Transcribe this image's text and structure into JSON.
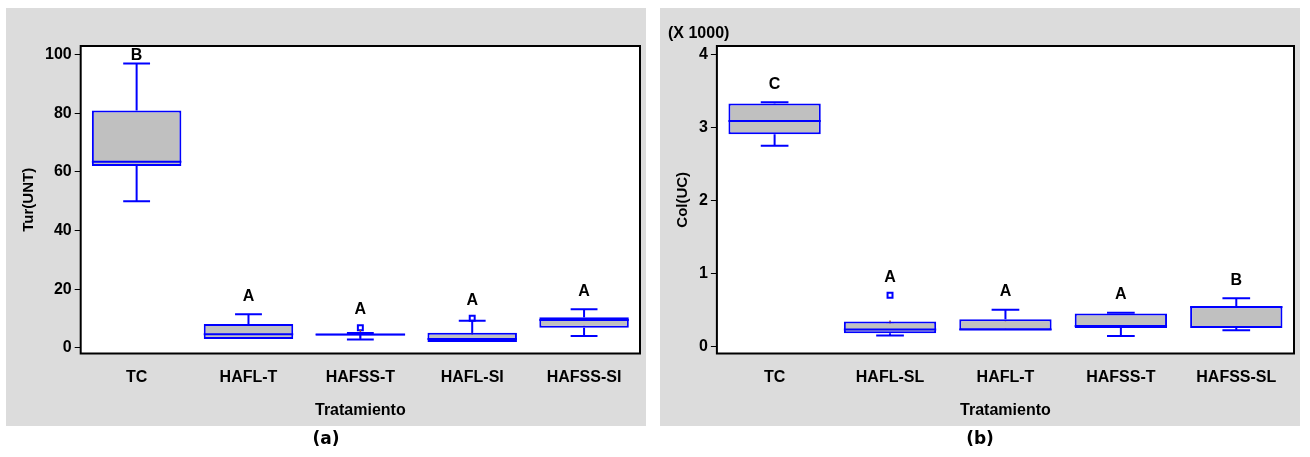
{
  "chart_data": [
    {
      "type": "box",
      "xlabel": "Tratamiento",
      "ylabel": "Tur(UNT)",
      "categories": [
        "TC",
        "HAFL-T",
        "HAFSS-T",
        "HAFL-SI",
        "HAFSS-SI"
      ],
      "ylim": [
        -2,
        103
      ],
      "yticks": [
        0,
        20,
        40,
        60,
        80,
        100
      ],
      "grid": false,
      "legend": false,
      "series": [
        {
          "color": "#0000ff",
          "boxes": [
            {
              "low": 50,
              "q1": 62,
              "median": 63.5,
              "q3": 81,
              "high": 97,
              "mean": 71
            },
            {
              "low": 3,
              "q1": 3,
              "median": 4.6,
              "q3": 8.1,
              "high": 11.4,
              "mean": 5.9
            },
            {
              "low": 2.8,
              "q1": 4.2,
              "median": 4.5,
              "q3": 4.8,
              "high": 5,
              "mean": 4.7,
              "outliers": [
                6.8
              ]
            },
            {
              "low": 2,
              "q1": 2,
              "median": 3,
              "q3": 5.1,
              "high": 9.2,
              "mean": 4,
              "outliers": [
                10.1
              ]
            },
            {
              "low": 4,
              "q1": 6.8,
              "median": 9.5,
              "q3": 10.4,
              "high": 13.1,
              "mean": 8.9
            }
          ]
        }
      ],
      "annotations": [
        "B",
        "A",
        "A",
        "A",
        "A",
        "(a)"
      ]
    },
    {
      "type": "box",
      "xlabel": "Tratamiento",
      "ylabel": "Col(UC)",
      "categories": [
        "TC",
        "HAFL-SL",
        "HAFL-T",
        "HAFSS-T",
        "HAFSS-SL"
      ],
      "ylim": [
        -0.1,
        4.12
      ],
      "yticks": [
        0,
        1,
        2,
        3,
        4
      ],
      "grid": false,
      "legend": false,
      "series": [
        {
          "color": "#0000ff",
          "boxes": [
            {
              "low": 2.75,
              "q1": 2.91,
              "median": 3.09,
              "q3": 3.33,
              "high": 3.35,
              "mean": 3.08
            },
            {
              "low": 0.15,
              "q1": 0.18,
              "median": 0.23,
              "q3": 0.34,
              "high": 0.34,
              "mean": 0.3,
              "outliers": [
                0.7
              ]
            },
            {
              "low": 0.22,
              "q1": 0.22,
              "median": 0.23,
              "q3": 0.37,
              "high": 0.5,
              "mean": 0.3
            },
            {
              "low": 0.14,
              "q1": 0.25,
              "median": 0.28,
              "q3": 0.45,
              "high": 0.46,
              "mean": 0.3
            },
            {
              "low": 0.22,
              "q1": 0.25,
              "median": 0.54,
              "q3": 0.55,
              "high": 0.66,
              "mean": 0.45
            }
          ]
        }
      ],
      "annotations": [
        "C",
        "A",
        "A",
        "A",
        "B",
        "(X 1000)",
        "(b)"
      ]
    }
  ]
}
